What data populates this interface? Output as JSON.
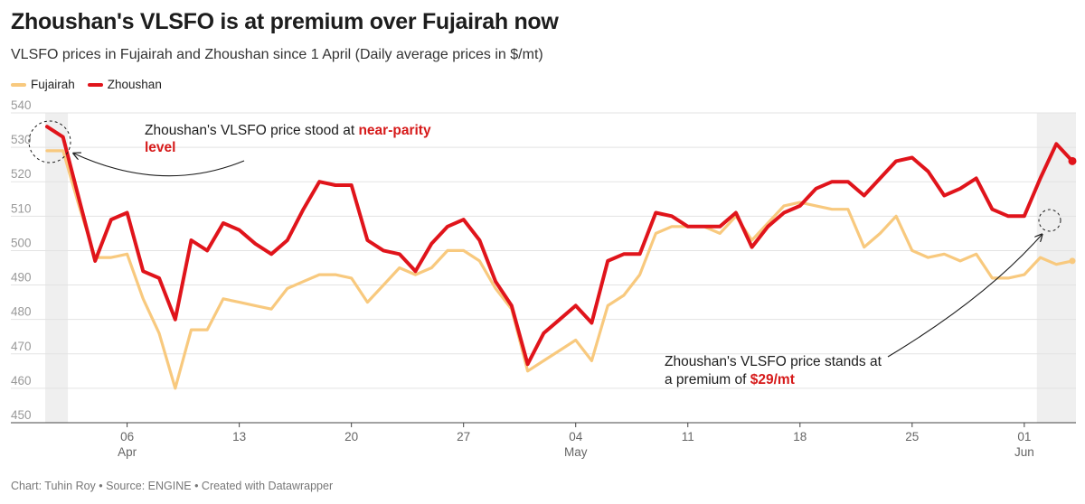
{
  "title": "Zhoushan's VLSFO is at premium over Fujairah now",
  "subtitle": "VLSFO prices in Fujairah and Zhoushan since 1 April (Daily average prices in $/mt)",
  "footer": "Chart: Tuhin Roy • Source: ENGINE • Created with Datawrapper",
  "colors": {
    "fujairah": "#f8c97e",
    "zhoushan": "#e0141b",
    "highlight": "#d61a1a",
    "grid": "#e3e3e3",
    "shade": "#efefef"
  },
  "legend": [
    {
      "name": "Fujairah",
      "color": "#f8c97e"
    },
    {
      "name": "Zhoushan",
      "color": "#e0141b"
    }
  ],
  "annotations": {
    "a1": {
      "pre": "Zhoushan's VLSFO price stood at ",
      "hl1": "near-parity",
      "hl2": "level"
    },
    "a2": {
      "line1": "Zhoushan's VLSFO price stands at",
      "pre2": "a premium of ",
      "hl": "$29/mt"
    }
  },
  "chart_data": {
    "type": "line",
    "title": "Zhoushan's VLSFO is at premium over Fujairah now",
    "xlabel": "",
    "ylabel": "",
    "ylim": [
      450,
      540
    ],
    "yticks": [
      450,
      460,
      470,
      480,
      490,
      500,
      510,
      520,
      530,
      540
    ],
    "grid": true,
    "legend_position": "top-left",
    "x_ticks": [
      {
        "x": 6,
        "label": "06",
        "sub": "Apr"
      },
      {
        "x": 13,
        "label": "13",
        "sub": ""
      },
      {
        "x": 20,
        "label": "20",
        "sub": ""
      },
      {
        "x": 27,
        "label": "27",
        "sub": ""
      },
      {
        "x": 34,
        "label": "04",
        "sub": "May"
      },
      {
        "x": 41,
        "label": "11",
        "sub": ""
      },
      {
        "x": 48,
        "label": "18",
        "sub": ""
      },
      {
        "x": 55,
        "label": "25",
        "sub": ""
      },
      {
        "x": 62,
        "label": "01",
        "sub": "Jun"
      }
    ],
    "shaded_ranges": [
      [
        1,
        2.3
      ],
      [
        62.9,
        65.5
      ]
    ],
    "series": [
      {
        "name": "Fujairah",
        "points": [
          [
            1,
            529
          ],
          [
            2,
            529
          ],
          [
            3,
            513
          ],
          [
            4,
            498
          ],
          [
            5,
            498
          ],
          [
            6,
            499
          ],
          [
            7,
            486
          ],
          [
            8,
            476
          ],
          [
            9,
            460
          ],
          [
            10,
            477
          ],
          [
            11,
            477
          ],
          [
            12,
            486
          ],
          [
            13,
            485
          ],
          [
            14,
            484
          ],
          [
            15,
            483
          ],
          [
            16,
            489
          ],
          [
            17,
            491
          ],
          [
            18,
            493
          ],
          [
            19,
            493
          ],
          [
            20,
            492
          ],
          [
            21,
            485
          ],
          [
            22,
            490
          ],
          [
            23,
            495
          ],
          [
            24,
            493
          ],
          [
            25,
            495
          ],
          [
            26,
            500
          ],
          [
            27,
            500
          ],
          [
            28,
            497
          ],
          [
            29,
            489
          ],
          [
            30,
            483
          ],
          [
            31,
            465
          ],
          [
            32,
            468
          ],
          [
            33,
            471
          ],
          [
            34,
            474
          ],
          [
            35,
            468
          ],
          [
            36,
            484
          ],
          [
            37,
            487
          ],
          [
            38,
            493
          ],
          [
            39,
            505
          ],
          [
            40,
            507
          ],
          [
            41,
            507
          ],
          [
            42,
            507
          ],
          [
            43,
            505
          ],
          [
            44,
            510
          ],
          [
            45,
            503
          ],
          [
            46,
            508
          ],
          [
            47,
            513
          ],
          [
            48,
            514
          ],
          [
            49,
            513
          ],
          [
            50,
            512
          ],
          [
            51,
            512
          ],
          [
            52,
            501
          ],
          [
            53,
            505
          ],
          [
            54,
            510
          ],
          [
            55,
            500
          ],
          [
            56,
            498
          ],
          [
            57,
            499
          ],
          [
            58,
            497
          ],
          [
            59,
            499
          ],
          [
            60,
            492
          ],
          [
            61,
            492
          ],
          [
            62,
            493
          ],
          [
            63,
            498
          ],
          [
            64,
            496
          ],
          [
            65,
            497
          ]
        ]
      },
      {
        "name": "Zhoushan",
        "points": [
          [
            1,
            536
          ],
          [
            2,
            533
          ],
          [
            3,
            515
          ],
          [
            4,
            497
          ],
          [
            5,
            509
          ],
          [
            6,
            511
          ],
          [
            7,
            494
          ],
          [
            8,
            492
          ],
          [
            9,
            480
          ],
          [
            10,
            503
          ],
          [
            11,
            500
          ],
          [
            12,
            508
          ],
          [
            13,
            506
          ],
          [
            14,
            502
          ],
          [
            15,
            499
          ],
          [
            16,
            503
          ],
          [
            17,
            512
          ],
          [
            18,
            520
          ],
          [
            19,
            519
          ],
          [
            20,
            519
          ],
          [
            21,
            503
          ],
          [
            22,
            500
          ],
          [
            23,
            499
          ],
          [
            24,
            494
          ],
          [
            25,
            502
          ],
          [
            26,
            507
          ],
          [
            27,
            509
          ],
          [
            28,
            503
          ],
          [
            29,
            491
          ],
          [
            30,
            484
          ],
          [
            31,
            467
          ],
          [
            32,
            476
          ],
          [
            33,
            480
          ],
          [
            34,
            484
          ],
          [
            35,
            479
          ],
          [
            36,
            497
          ],
          [
            37,
            499
          ],
          [
            38,
            499
          ],
          [
            39,
            511
          ],
          [
            40,
            510
          ],
          [
            41,
            507
          ],
          [
            42,
            507
          ],
          [
            43,
            507
          ],
          [
            44,
            511
          ],
          [
            45,
            501
          ],
          [
            46,
            507
          ],
          [
            47,
            511
          ],
          [
            48,
            513
          ],
          [
            49,
            518
          ],
          [
            50,
            520
          ],
          [
            51,
            520
          ],
          [
            52,
            516
          ],
          [
            53,
            521
          ],
          [
            54,
            526
          ],
          [
            55,
            527
          ],
          [
            56,
            523
          ],
          [
            57,
            516
          ],
          [
            58,
            518
          ],
          [
            59,
            521
          ],
          [
            60,
            512
          ],
          [
            61,
            510
          ],
          [
            62,
            510
          ],
          [
            63,
            521
          ],
          [
            64,
            531
          ],
          [
            65,
            526
          ]
        ]
      }
    ]
  }
}
